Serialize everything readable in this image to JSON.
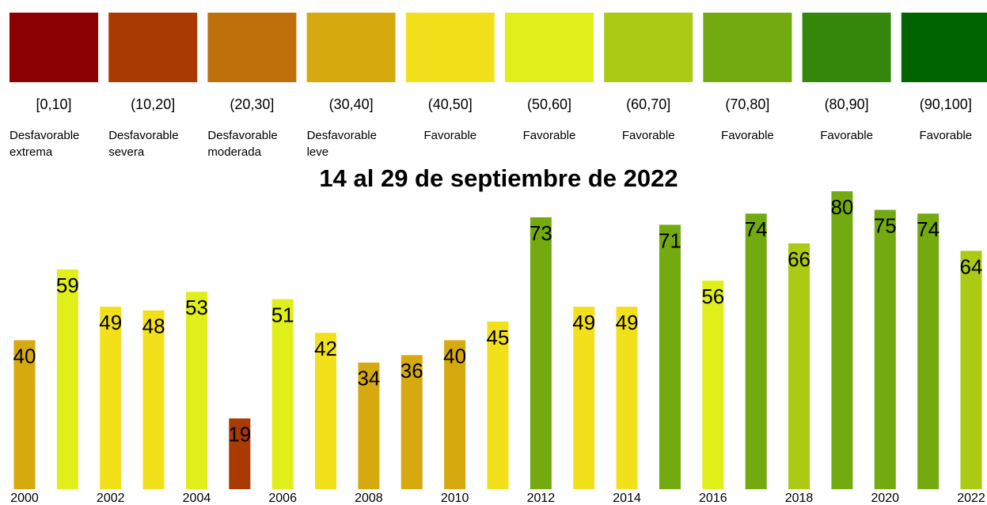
{
  "chart_data": {
    "type": "bar",
    "title": "14 al 29 de septiembre de 2022",
    "legend": [
      {
        "range": "[0,10]",
        "label": "Desfavorable extrema",
        "color": "#8b0000"
      },
      {
        "range": "(10,20]",
        "label": "Desfavorable severa",
        "color": "#a93a02"
      },
      {
        "range": "(20,30]",
        "label": "Desfavorable moderada",
        "color": "#c0700a"
      },
      {
        "range": "(30,40]",
        "label": "Desfavorable leve",
        "color": "#d6a90f"
      },
      {
        "range": "(40,50]",
        "label": "Favorable",
        "color": "#f2e01a"
      },
      {
        "range": "(50,60]",
        "label": "Favorable",
        "color": "#e0ee1a"
      },
      {
        "range": "(60,70]",
        "label": "Favorable",
        "color": "#abca14"
      },
      {
        "range": "(70,80]",
        "label": "Favorable",
        "color": "#72aa10"
      },
      {
        "range": "(80,90]",
        "label": "Favorable",
        "color": "#34880b"
      },
      {
        "range": "(90,100]",
        "label": "Favorable",
        "color": "#006400"
      }
    ],
    "categories": [
      "2000",
      null,
      "2002",
      null,
      "2004",
      null,
      "2006",
      null,
      "2008",
      null,
      "2010",
      null,
      "2012",
      null,
      "2014",
      null,
      "2016",
      null,
      "2018",
      null,
      "2020",
      null,
      "2022"
    ],
    "values": [
      40,
      59,
      49,
      48,
      53,
      19,
      51,
      42,
      34,
      36,
      40,
      45,
      73,
      49,
      49,
      71,
      56,
      74,
      66,
      80,
      75,
      74,
      64
    ],
    "colors": [
      "#d6a90f",
      "#e0ee1a",
      "#f2e01a",
      "#f2e01a",
      "#e0ee1a",
      "#a93a02",
      "#e0ee1a",
      "#f2e01a",
      "#d6a90f",
      "#d6a90f",
      "#d6a90f",
      "#f2e01a",
      "#72aa10",
      "#f2e01a",
      "#f2e01a",
      "#72aa10",
      "#e0ee1a",
      "#72aa10",
      "#abca14",
      "#72aa10",
      "#72aa10",
      "#72aa10",
      "#abca14"
    ]
  }
}
